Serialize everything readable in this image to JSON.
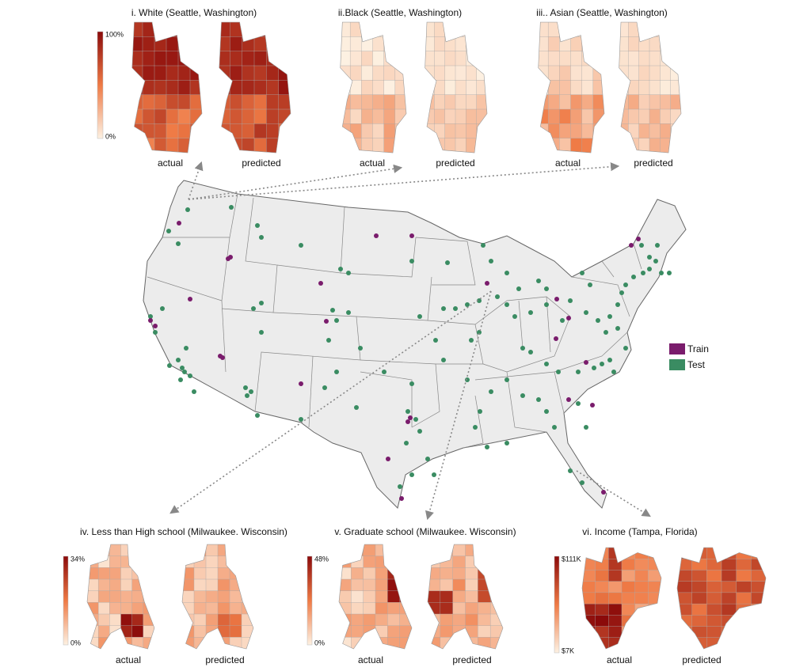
{
  "panels": [
    {
      "title": "i. White (Seattle, Washington)",
      "labels": [
        "actual",
        "predicted"
      ],
      "colorbar": {
        "max": "100%",
        "min": "0%"
      }
    },
    {
      "title": "ii.Black (Seattle, Washington)",
      "labels": [
        "actual",
        "predicted"
      ]
    },
    {
      "title": "iii.. Asian (Seattle, Washington)",
      "labels": [
        "actual",
        "predicted"
      ]
    },
    {
      "title": "iv. Less than High school   (Milwaukee. Wisconsin)",
      "labels": [
        "actual",
        "predicted"
      ],
      "colorbar": {
        "max": "34%",
        "min": "0%"
      }
    },
    {
      "title": "v. Graduate school  (Milwaukee. Wisconsin)",
      "labels": [
        "actual",
        "predicted"
      ],
      "colorbar": {
        "max": "48%",
        "min": "0%"
      }
    },
    {
      "title": "vi. Income (Tampa, Florida)",
      "labels": [
        "actual",
        "predicted"
      ],
      "colorbar": {
        "max": "$111K",
        "min": "$7K"
      }
    }
  ],
  "legend": [
    {
      "name": "Train",
      "color": "#7a1c6c"
    },
    {
      "name": "Test",
      "color": "#3a8c62"
    }
  ]
}
